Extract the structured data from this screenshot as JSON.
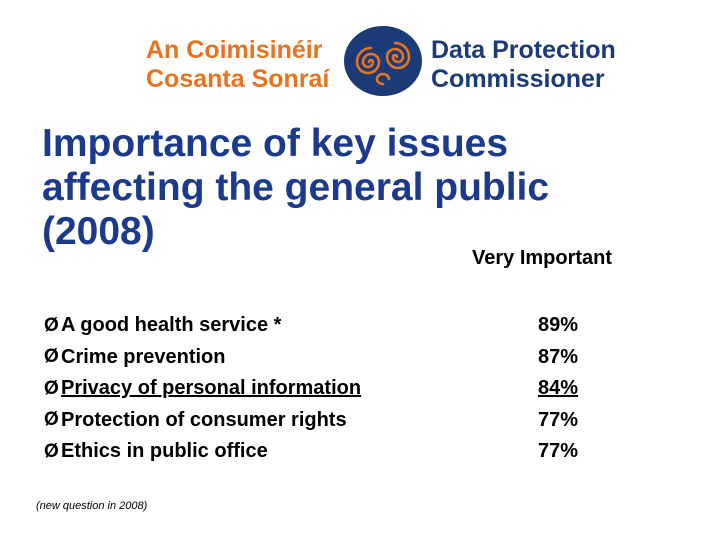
{
  "logo": {
    "irish_line1": "An Coimisinéir",
    "irish_line2": "Cosanta Sonraí",
    "english_line1": "Data Protection",
    "english_line2": "Commissioner",
    "colors": {
      "orange": "#e8731f",
      "navy": "#1b3a78"
    }
  },
  "title": {
    "line1": "Importance of key issues",
    "line2": "affecting the general public",
    "line3": "(2008)",
    "color": "#1b3a8c"
  },
  "column_header": "Very Important",
  "issues": [
    {
      "bullet": "Ø",
      "label": "A good health service   *",
      "value": "89%"
    },
    {
      "bullet": "Ø",
      "label": "Crime prevention",
      "value": "87%"
    },
    {
      "bullet": "Ø",
      "label": "Privacy of personal information",
      "value": "84%",
      "underlined": true
    },
    {
      "bullet": "Ø",
      "label": "Protection of consumer rights",
      "value": "77%"
    },
    {
      "bullet": "Ø",
      "label": "Ethics in public office",
      "value": "77%"
    }
  ],
  "footnote": "(new question in 2008)"
}
